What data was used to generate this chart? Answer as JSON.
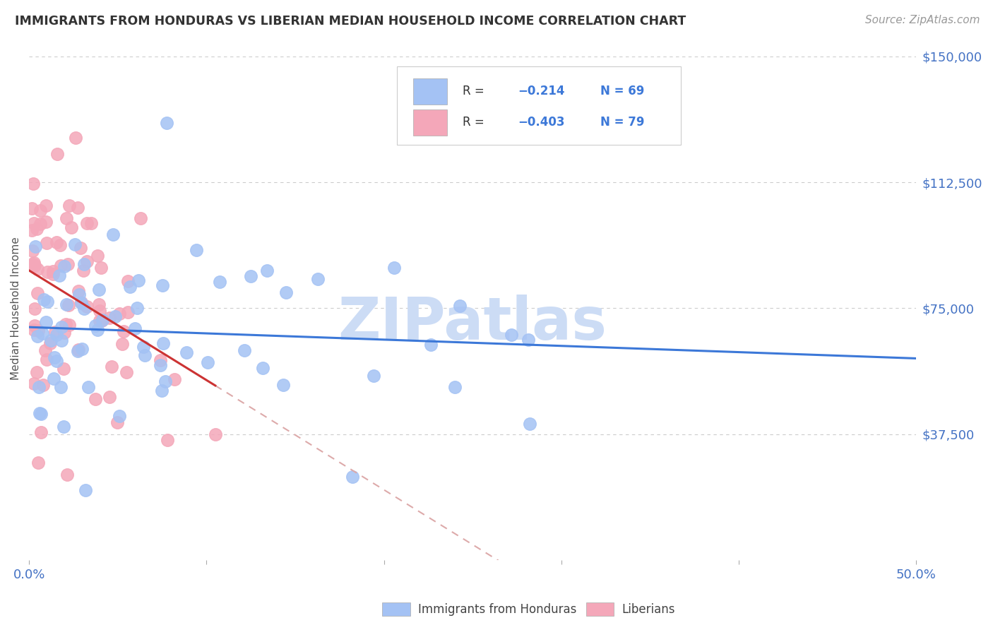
{
  "title": "IMMIGRANTS FROM HONDURAS VS LIBERIAN MEDIAN HOUSEHOLD INCOME CORRELATION CHART",
  "source": "Source: ZipAtlas.com",
  "ylabel": "Median Household Income",
  "xlim": [
    0.0,
    0.5
  ],
  "ylim": [
    0,
    150000
  ],
  "ytick_vals": [
    37500,
    75000,
    112500,
    150000
  ],
  "ytick_labels": [
    "$37,500",
    "$75,000",
    "$112,500",
    "$150,000"
  ],
  "xtick_vals": [
    0.0,
    0.1,
    0.2,
    0.3,
    0.4,
    0.5
  ],
  "xtick_labels": [
    "0.0%",
    "",
    "",
    "",
    "",
    "50.0%"
  ],
  "axis_label_color": "#4472c4",
  "title_color": "#333333",
  "source_color": "#999999",
  "watermark_text": "ZIPatlas",
  "watermark_color": "#ccdcf5",
  "blue_dot_color": "#a4c2f4",
  "pink_dot_color": "#f4a7b9",
  "blue_line_color": "#3c78d8",
  "pink_line_color": "#cc3333",
  "dash_line_color": "#ddaaaa",
  "grid_color": "#cccccc",
  "legend_bg": "#ffffff",
  "legend_border": "#dddddd",
  "bottom_legend1": "Immigrants from Honduras",
  "bottom_legend2": "Liberians"
}
